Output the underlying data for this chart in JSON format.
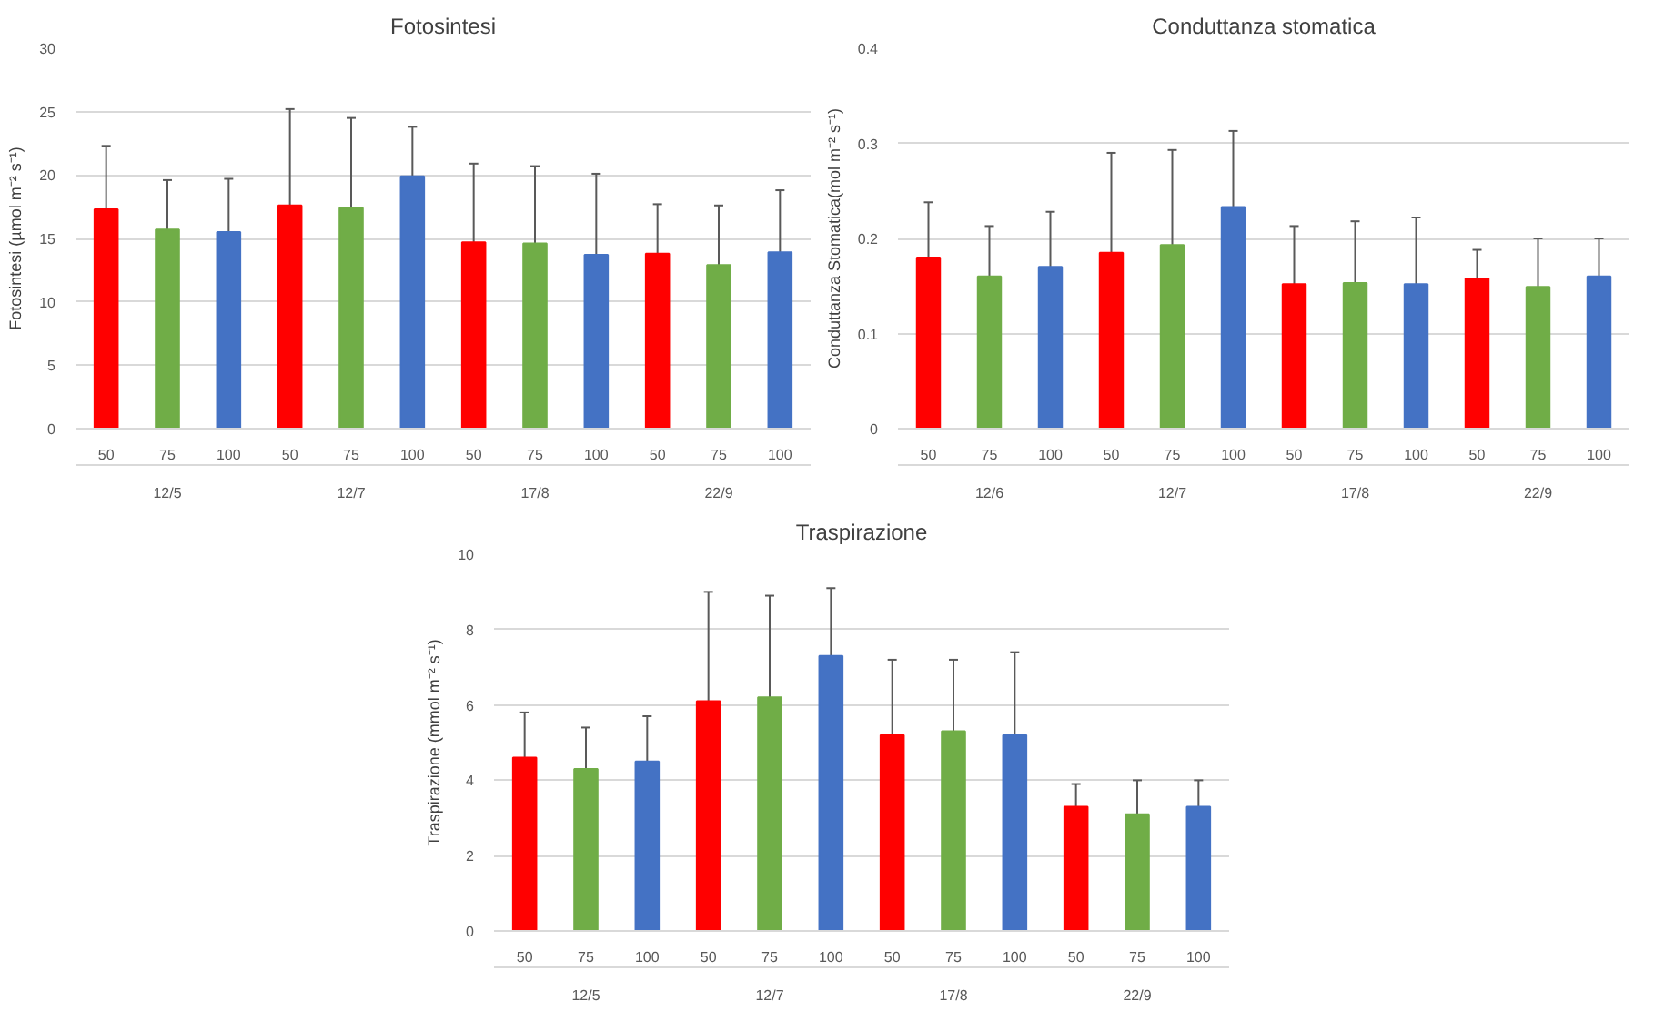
{
  "chart_data": [
    {
      "type": "bar",
      "title": "Fotosintesi",
      "ylabel": "Fotosintesi (µmol m⁻² s⁻¹)",
      "categories": [
        "50",
        "75",
        "100",
        "50",
        "75",
        "100",
        "50",
        "75",
        "100",
        "50",
        "75",
        "100"
      ],
      "values": [
        17.3,
        15.7,
        15.5,
        17.6,
        17.4,
        19.9,
        14.7,
        14.6,
        13.7,
        13.8,
        12.9,
        13.9
      ],
      "errors": [
        5.0,
        3.9,
        4.2,
        7.6,
        7.1,
        3.9,
        6.2,
        6.1,
        6.4,
        3.9,
        4.7,
        4.9
      ],
      "colors": [
        "#ff0000",
        "#70ad47",
        "#4472c4",
        "#ff0000",
        "#70ad47",
        "#4472c4",
        "#ff0000",
        "#70ad47",
        "#4472c4",
        "#ff0000",
        "#70ad47",
        "#4472c4"
      ],
      "annotations": [
        "12/5",
        "12/7",
        "17/8",
        "22/9"
      ],
      "ylim": [
        0,
        30
      ],
      "yticks": [
        0,
        5,
        10,
        15,
        20,
        25,
        30
      ],
      "grid": "y",
      "legend": false
    },
    {
      "type": "bar",
      "title": "Conduttanza stomatica",
      "ylabel": "Conduttanza Stomatica(mol m⁻² s⁻¹)",
      "categories": [
        "50",
        "75",
        "100",
        "50",
        "75",
        "100",
        "50",
        "75",
        "100",
        "50",
        "75",
        "100"
      ],
      "values": [
        0.18,
        0.16,
        0.17,
        0.185,
        0.193,
        0.233,
        0.152,
        0.153,
        0.152,
        0.158,
        0.149,
        0.16
      ],
      "errors": [
        0.058,
        0.053,
        0.058,
        0.105,
        0.1,
        0.08,
        0.061,
        0.065,
        0.07,
        0.03,
        0.051,
        0.04
      ],
      "colors": [
        "#ff0000",
        "#70ad47",
        "#4472c4",
        "#ff0000",
        "#70ad47",
        "#4472c4",
        "#ff0000",
        "#70ad47",
        "#4472c4",
        "#ff0000",
        "#70ad47",
        "#4472c4"
      ],
      "annotations": [
        "12/6",
        "12/7",
        "17/8",
        "22/9"
      ],
      "ylim": [
        0,
        0.4
      ],
      "yticks": [
        0,
        0.1,
        0.2,
        0.3,
        0.4
      ],
      "grid": "y",
      "legend": false
    },
    {
      "type": "bar",
      "title": "Traspirazione",
      "ylabel": "Traspirazione (mmol m⁻² s⁻¹)",
      "categories": [
        "50",
        "75",
        "100",
        "50",
        "75",
        "100",
        "50",
        "75",
        "100",
        "50",
        "75",
        "100"
      ],
      "values": [
        4.6,
        4.3,
        4.5,
        6.1,
        6.2,
        7.3,
        5.2,
        5.3,
        5.2,
        3.3,
        3.1,
        3.3
      ],
      "errors": [
        1.2,
        1.1,
        1.2,
        2.9,
        2.7,
        1.8,
        2.0,
        1.9,
        2.2,
        0.6,
        0.9,
        0.7
      ],
      "colors": [
        "#ff0000",
        "#70ad47",
        "#4472c4",
        "#ff0000",
        "#70ad47",
        "#4472c4",
        "#ff0000",
        "#70ad47",
        "#4472c4",
        "#ff0000",
        "#70ad47",
        "#4472c4"
      ],
      "annotations": [
        "12/5",
        "12/7",
        "17/8",
        "22/9"
      ],
      "ylim": [
        0,
        10
      ],
      "yticks": [
        0,
        2,
        4,
        6,
        8,
        10
      ],
      "grid": "y",
      "legend": false
    }
  ]
}
